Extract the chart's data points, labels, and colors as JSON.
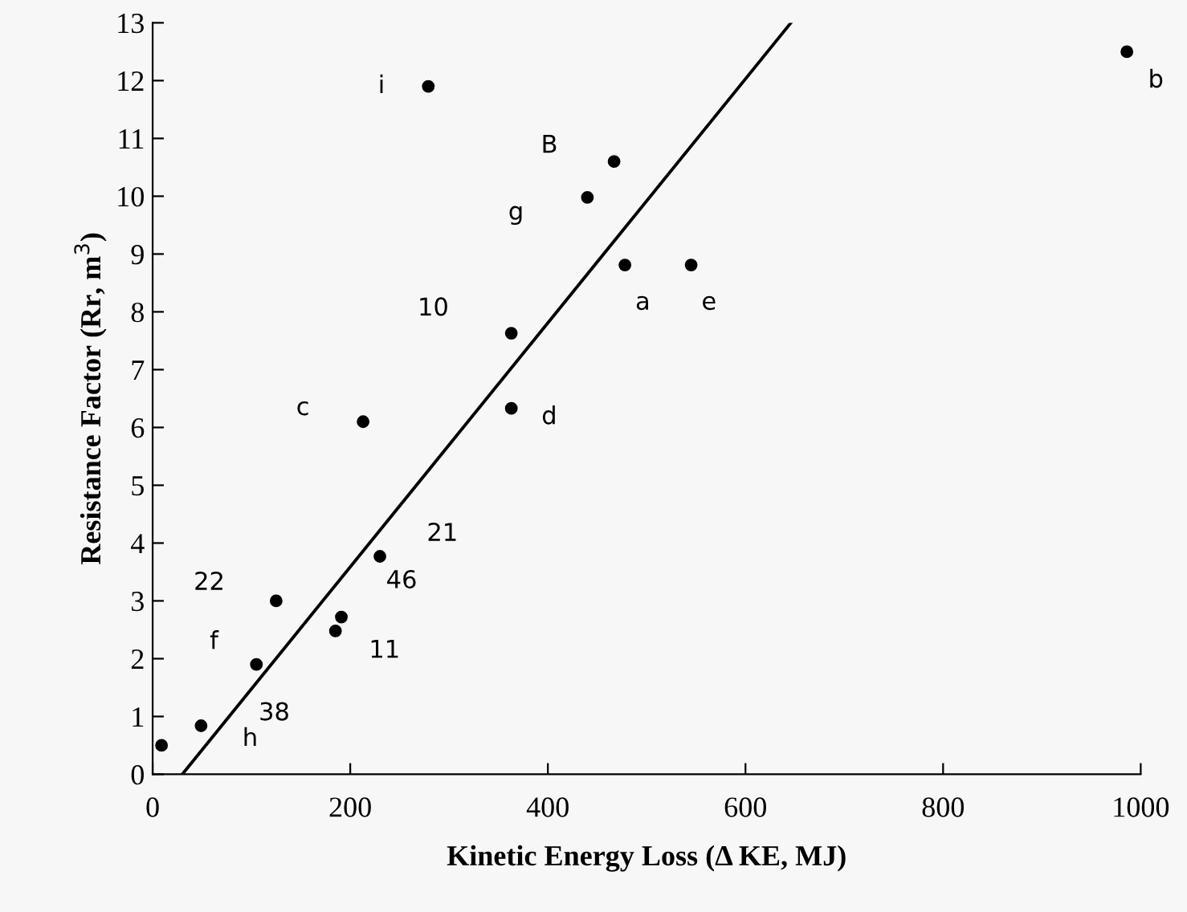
{
  "chart_data": {
    "type": "scatter",
    "xlabel": "Kinetic Energy Loss (Δ KE, MJ)",
    "ylabel": "Resistance Factor (Rr, m$^{3}$)",
    "x": [
      9,
      49,
      105,
      125,
      185,
      191,
      230,
      213,
      363,
      363,
      279,
      440,
      467,
      478,
      545,
      986
    ],
    "series": [
      {
        "type": "scatter",
        "color": "#000000",
        "marker": "circle",
        "values": [
          0.5,
          0.84,
          1.9,
          3.0,
          2.48,
          2.72,
          3.77,
          6.1,
          6.33,
          7.63,
          11.9,
          9.98,
          10.6,
          8.81,
          8.81,
          12.5
        ]
      },
      {
        "type": "line",
        "color": "#000000",
        "marker": "none",
        "line_style": "solid",
        "x": [
          30,
          646
        ],
        "values": [
          0,
          13
        ]
      }
    ],
    "annotations": [
      {
        "text": "h",
        "x": 49,
        "y": 0.84
      },
      {
        "text": "f",
        "x": 105,
        "y": 1.9
      },
      {
        "text": "38",
        "x": 105,
        "y": 1.9
      },
      {
        "text": "22",
        "x": 125,
        "y": 3.0
      },
      {
        "text": "11",
        "x": 185,
        "y": 2.48
      },
      {
        "text": "46",
        "x": 191,
        "y": 2.72
      },
      {
        "text": "21",
        "x": 230,
        "y": 3.77
      },
      {
        "text": "c",
        "x": 213,
        "y": 6.1
      },
      {
        "text": "d",
        "x": 363,
        "y": 6.33
      },
      {
        "text": "10",
        "x": 363,
        "y": 7.63
      },
      {
        "text": "i",
        "x": 279,
        "y": 11.9
      },
      {
        "text": "g",
        "x": 440,
        "y": 9.98
      },
      {
        "text": "B",
        "x": 467,
        "y": 10.6
      },
      {
        "text": "a",
        "x": 478,
        "y": 8.81
      },
      {
        "text": "e",
        "x": 545,
        "y": 8.81
      },
      {
        "text": "b",
        "x": 986,
        "y": 12.5
      }
    ],
    "xlim": [
      0,
      1000
    ],
    "xticks": [
      0,
      200,
      400,
      600,
      800,
      1000
    ],
    "ylim": [
      0,
      13
    ],
    "yticks": [
      0,
      1,
      2,
      3,
      4,
      5,
      6,
      7,
      8,
      9,
      10,
      11,
      12,
      13
    ],
    "grid": false,
    "legend": false
  }
}
